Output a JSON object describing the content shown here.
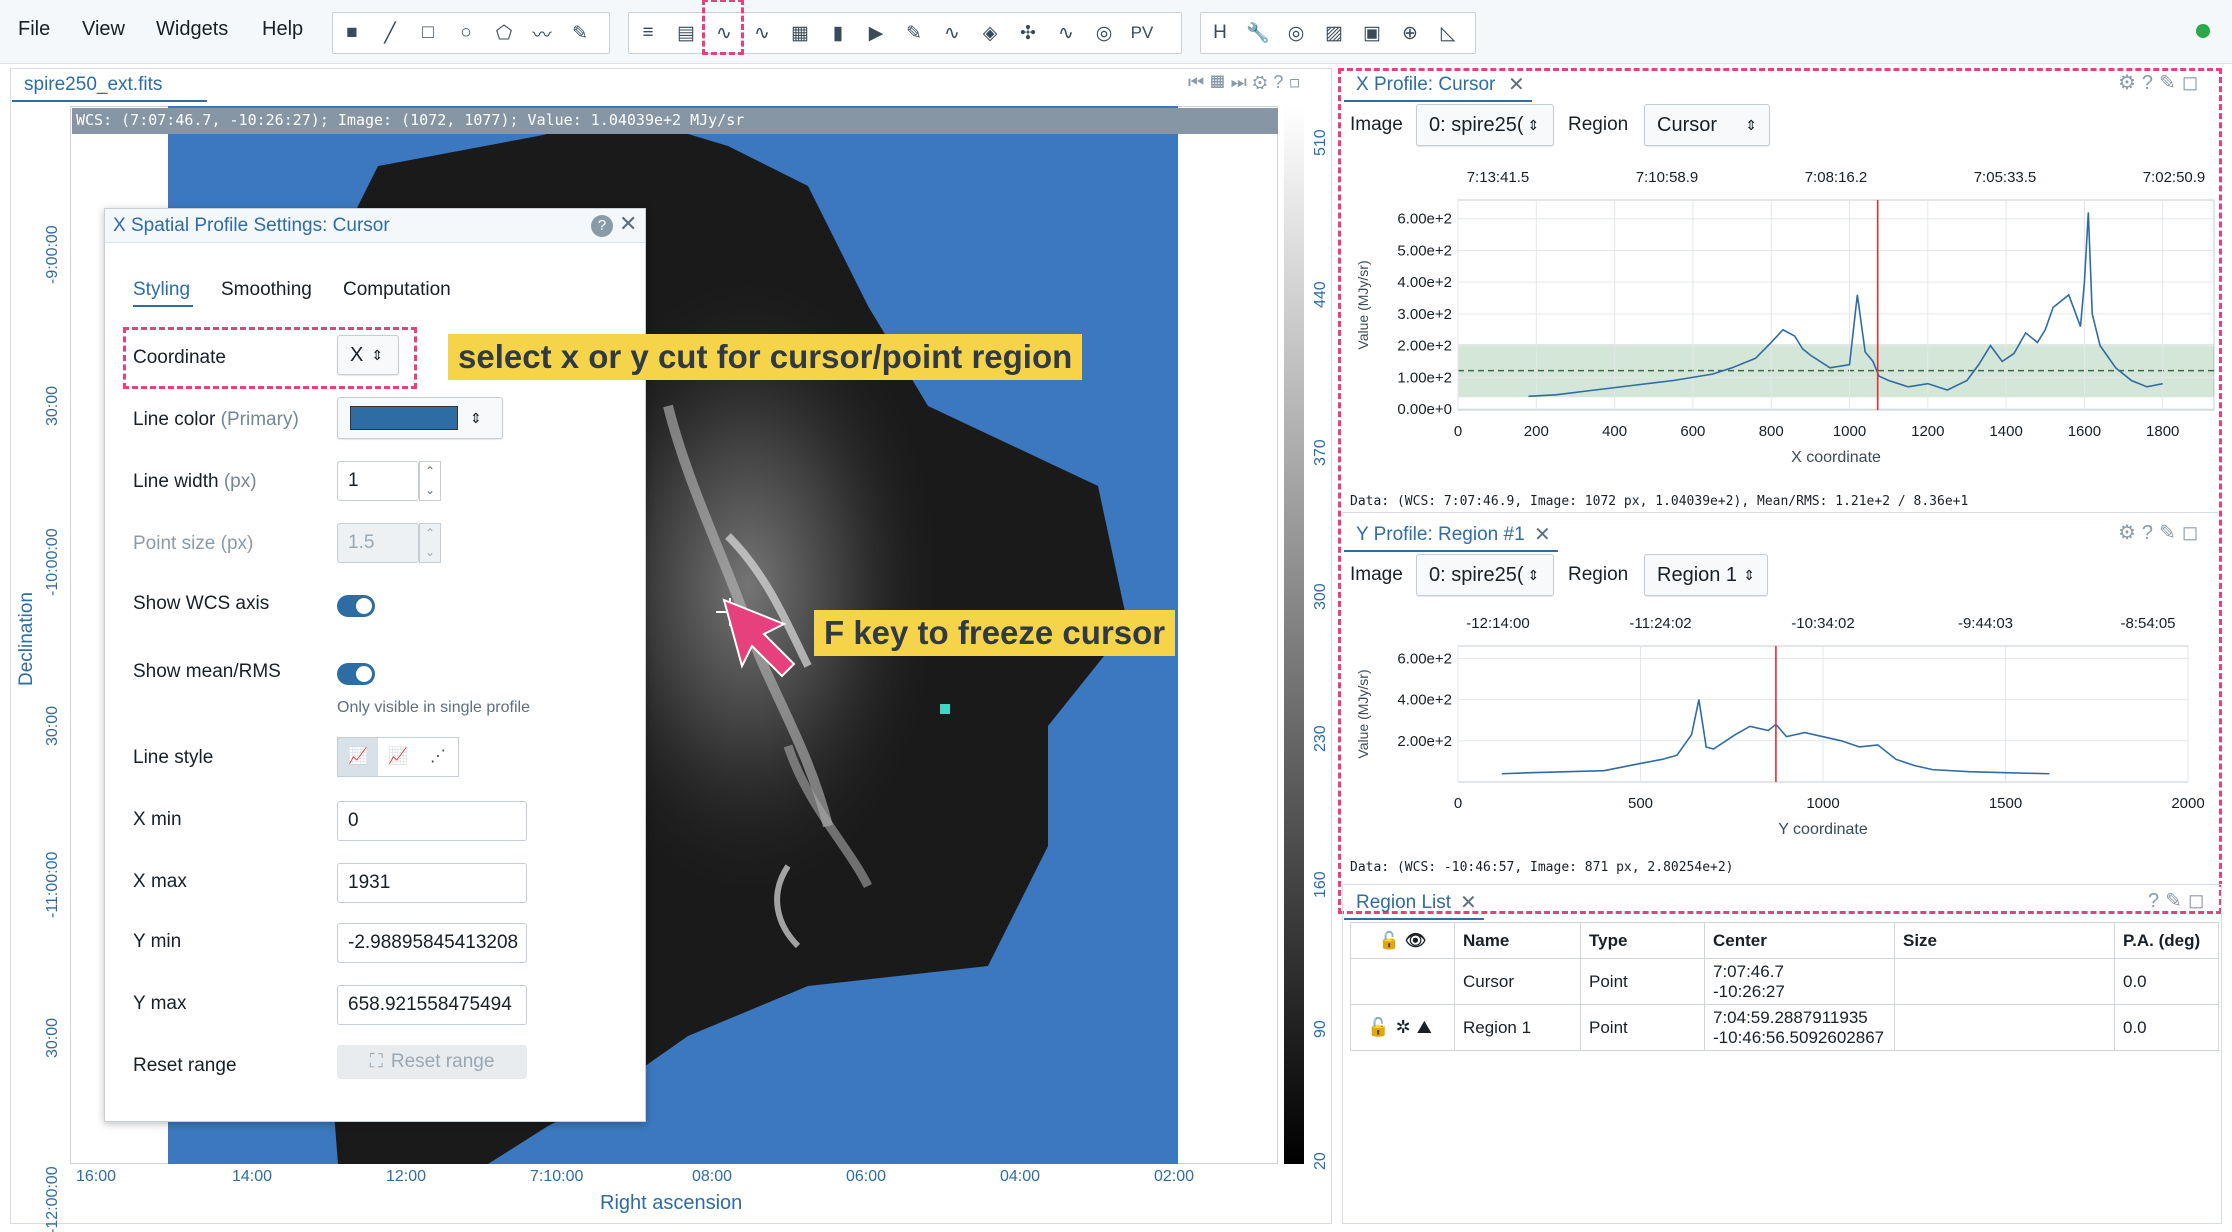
{
  "menu": [
    "File",
    "View",
    "Widgets",
    "Help"
  ],
  "toolbar": {
    "pv_label": "PV"
  },
  "image_tab": "spire250_ext.fits",
  "status_bar": "WCS: (7:07:46.7, -10:26:27); Image: (1072, 1077); Value:  1.04039e+2 MJy/sr",
  "image_axes": {
    "ylabel": "Declination",
    "xlabel": "Right ascension",
    "dec_ticks": [
      "-9:00:00",
      "30:00",
      "-10:00:00",
      "30:00",
      "-11:00:00",
      "30:00",
      "-12:00:00"
    ],
    "ra_ticks": [
      "16:00",
      "14:00",
      "12:00",
      "7:10:00",
      "08:00",
      "06:00",
      "04:00",
      "02:00"
    ],
    "colorbar_ticks": [
      "510",
      "440",
      "370",
      "300",
      "230",
      "160",
      "90",
      "20"
    ]
  },
  "settings": {
    "title": "X Spatial Profile Settings: Cursor",
    "tabs": [
      "Styling",
      "Smoothing",
      "Computation"
    ],
    "coordinate_label": "Coordinate",
    "coordinate_value": "X",
    "line_color_label": "Line color",
    "line_color_sub": "(Primary)",
    "line_width_label": "Line width",
    "line_width_unit": "(px)",
    "line_width_value": "1",
    "point_size_label": "Point size",
    "point_size_unit": "(px)",
    "point_size_value": "1.5",
    "show_wcs_label": "Show WCS axis",
    "show_mean_label": "Show mean/RMS",
    "only_visible": "Only visible in single profile",
    "line_style_label": "Line style",
    "xmin_label": "X min",
    "xmin_value": "0",
    "xmax_label": "X max",
    "xmax_value": "1931",
    "ymin_label": "Y min",
    "ymin_value": "-2.98895845413208",
    "ymax_label": "Y max",
    "ymax_value": "658.921558475494",
    "reset_label": "Reset range",
    "reset_button": "Reset range"
  },
  "annotations": {
    "coord": "select x or y cut for cursor/point region",
    "freeze": "F key to freeze cursor"
  },
  "xprofile": {
    "title": "X Profile: Cursor",
    "image_label": "Image",
    "image_value": "0: spire25(",
    "region_label": "Region",
    "region_value": "Cursor",
    "wcs_ticks": [
      "7:13:41.5",
      "7:10:58.9",
      "7:08:16.2",
      "7:05:33.5",
      "7:02:50.9"
    ],
    "y_ticks": [
      "6.00e+2",
      "5.00e+2",
      "4.00e+2",
      "3.00e+2",
      "2.00e+2",
      "1.00e+2",
      "0.00e+0"
    ],
    "x_ticks": [
      "0",
      "200",
      "400",
      "600",
      "800",
      "1000",
      "1200",
      "1400",
      "1600",
      "1800"
    ],
    "xlabel": "X coordinate",
    "ylabel": "Value (MJy/sr)",
    "footer": "Data: (WCS: 7:07:46.9, Image: 1072 px, 1.04039e+2), Mean/RMS: 1.21e+2 / 8.36e+1"
  },
  "yprofile": {
    "title": "Y Profile: Region #1",
    "image_label": "Image",
    "image_value": "0: spire25(",
    "region_label": "Region",
    "region_value": "Region 1",
    "wcs_ticks": [
      "-12:14:00",
      "-11:24:02",
      "-10:34:02",
      "-9:44:03",
      "-8:54:05"
    ],
    "y_ticks": [
      "6.00e+2",
      "4.00e+2",
      "2.00e+2"
    ],
    "x_ticks": [
      "0",
      "500",
      "1000",
      "1500",
      "2000"
    ],
    "xlabel": "Y coordinate",
    "ylabel": "Value (MJy/sr)",
    "footer": "Data: (WCS: -10:46:57, Image: 871 px, 2.80254e+2)"
  },
  "region_list": {
    "title": "Region List",
    "headers": [
      "Name",
      "Type",
      "Center",
      "Size",
      "P.A. (deg)"
    ],
    "rows": [
      {
        "name": "Cursor",
        "type": "Point",
        "center1": "7:07:46.7",
        "center2": "-10:26:27",
        "size": "",
        "pa": "0.0"
      },
      {
        "name": "Region 1",
        "type": "Point",
        "center1": "7:04:59.2887911935",
        "center2": "-10:46:56.5092602867",
        "size": "",
        "pa": "0.0"
      }
    ]
  },
  "chart_data": [
    {
      "type": "line",
      "xlabel": "X coordinate",
      "ylabel": "Value (MJy/sr)",
      "xlim": [
        0,
        1931
      ],
      "ylim": [
        -3,
        659
      ],
      "x": [
        180,
        250,
        350,
        450,
        550,
        650,
        700,
        760,
        800,
        830,
        860,
        880,
        900,
        950,
        1000,
        1020,
        1040,
        1060,
        1075,
        1100,
        1150,
        1200,
        1250,
        1300,
        1330,
        1360,
        1390,
        1420,
        1450,
        1480,
        1500,
        1520,
        1560,
        1590,
        1600,
        1610,
        1620,
        1640,
        1680,
        1720,
        1760,
        1800
      ],
      "values": [
        40,
        45,
        60,
        75,
        90,
        110,
        130,
        160,
        210,
        250,
        230,
        190,
        170,
        130,
        140,
        360,
        180,
        150,
        104,
        90,
        70,
        80,
        60,
        90,
        140,
        200,
        150,
        175,
        240,
        210,
        250,
        320,
        360,
        260,
        400,
        620,
        300,
        200,
        130,
        90,
        70,
        80
      ],
      "mean": 121,
      "rms": 83.6,
      "cursor_x": 1072
    },
    {
      "type": "line",
      "xlabel": "Y coordinate",
      "ylabel": "Value (MJy/sr)",
      "xlim": [
        0,
        2000
      ],
      "ylim": [
        0,
        660
      ],
      "x": [
        120,
        200,
        300,
        400,
        500,
        560,
        600,
        640,
        660,
        680,
        700,
        760,
        800,
        850,
        871,
        900,
        950,
        1000,
        1050,
        1100,
        1150,
        1200,
        1250,
        1300,
        1400,
        1500,
        1620
      ],
      "values": [
        40,
        45,
        50,
        55,
        90,
        110,
        130,
        230,
        400,
        170,
        160,
        230,
        270,
        250,
        280,
        220,
        240,
        220,
        200,
        170,
        180,
        110,
        80,
        60,
        50,
        45,
        40
      ],
      "cursor_x": 871
    }
  ]
}
